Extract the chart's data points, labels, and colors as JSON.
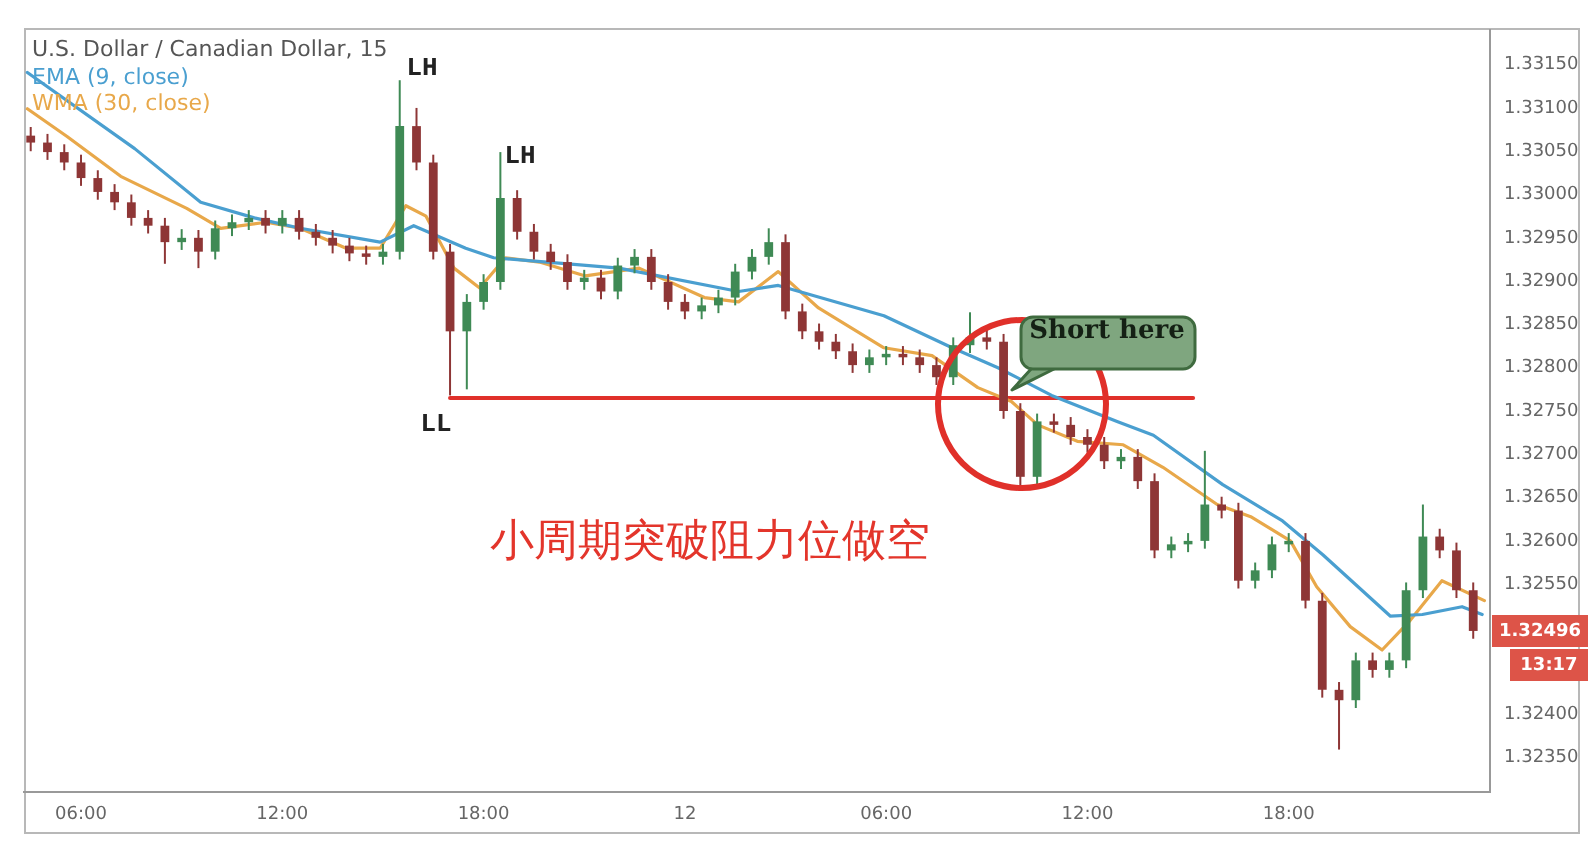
{
  "chart_data": {
    "type": "candlestick",
    "title": "U.S. Dollar / Canadian Dollar, 15",
    "x": [
      "--11-11T04:30",
      "--11-11T05:00",
      "--11-11T05:30",
      "--11-11T06:00",
      "--11-11T06:30",
      "--11-11T07:00",
      "--11-11T07:30",
      "--11-11T08:00",
      "--11-11T08:30",
      "--11-11T09:00",
      "--11-11T09:30",
      "--11-11T10:00",
      "--11-11T10:30",
      "--11-11T11:00",
      "--11-11T11:30",
      "--11-11T12:00",
      "--11-11T12:30",
      "--11-11T13:00",
      "--11-11T13:30",
      "--11-11T14:00",
      "--11-11T14:30",
      "--11-11T15:00",
      "--11-11T15:30",
      "--11-11T16:00",
      "--11-11T16:30",
      "--11-11T17:00",
      "--11-11T17:30",
      "--11-11T18:00",
      "--11-11T18:30",
      "--11-11T19:00",
      "--11-11T19:30",
      "--11-11T20:00",
      "--11-11T20:30",
      "--11-11T21:00",
      "--11-11T21:30",
      "--11-11T22:00",
      "--11-11T22:30",
      "--11-11T23:00",
      "--11-11T23:30",
      "--11-12T00:00",
      "--11-12T00:30",
      "--11-12T01:00",
      "--11-12T01:30",
      "--11-12T02:00",
      "--11-12T02:30",
      "--11-12T03:00",
      "--11-12T03:30",
      "--11-12T04:00",
      "--11-12T04:30",
      "--11-12T05:00",
      "--11-12T05:30",
      "--11-12T06:00",
      "--11-12T06:30",
      "--11-12T07:00",
      "--11-12T07:30",
      "--11-12T08:00",
      "--11-12T08:30",
      "--11-12T09:00",
      "--11-12T09:30",
      "--11-12T10:00",
      "--11-12T10:30",
      "--11-12T11:00",
      "--11-12T11:30",
      "--11-12T12:00",
      "--11-12T12:30",
      "--11-12T13:00",
      "--11-12T13:30",
      "--11-12T14:00",
      "--11-12T14:30",
      "--11-12T15:00",
      "--11-12T15:30",
      "--11-12T16:00",
      "--11-12T16:30",
      "--11-12T17:00",
      "--11-12T17:30",
      "--11-12T18:00",
      "--11-12T18:30",
      "--11-12T19:00",
      "--11-12T19:30",
      "--11-12T20:00",
      "--11-12T20:30",
      "--11-12T21:00",
      "--11-12T21:30",
      "--11-12T22:00",
      "--11-12T22:30",
      "--11-12T23:00",
      "--11-12T23:30"
    ],
    "ohlc": [
      [
        1.33068,
        1.33078,
        1.3305,
        1.3306
      ],
      [
        1.3306,
        1.3307,
        1.3304,
        1.33049
      ],
      [
        1.33049,
        1.33058,
        1.33028,
        1.33037
      ],
      [
        1.33037,
        1.33046,
        1.3301,
        1.33019
      ],
      [
        1.33019,
        1.33028,
        1.32994,
        1.33003
      ],
      [
        1.33003,
        1.33012,
        1.32982,
        1.32991
      ],
      [
        1.32991,
        1.33,
        1.32964,
        1.32973
      ],
      [
        1.32973,
        1.32982,
        1.32955,
        1.32964
      ],
      [
        1.32964,
        1.32973,
        1.3292,
        1.32945
      ],
      [
        1.32945,
        1.3296,
        1.32936,
        1.3295
      ],
      [
        1.3295,
        1.32959,
        1.32915,
        1.32934
      ],
      [
        1.32934,
        1.3297,
        1.32925,
        1.32961
      ],
      [
        1.32961,
        1.32977,
        1.32952,
        1.32968
      ],
      [
        1.32968,
        1.32982,
        1.32959,
        1.32973
      ],
      [
        1.32973,
        1.32982,
        1.32955,
        1.32964
      ],
      [
        1.32964,
        1.32982,
        1.32955,
        1.32973
      ],
      [
        1.32973,
        1.32982,
        1.32948,
        1.32957
      ],
      [
        1.32957,
        1.32966,
        1.32941,
        1.3295
      ],
      [
        1.3295,
        1.32959,
        1.32932,
        1.32941
      ],
      [
        1.32941,
        1.3295,
        1.32923,
        1.32932
      ],
      [
        1.32932,
        1.32941,
        1.32919,
        1.32928
      ],
      [
        1.32928,
        1.32943,
        1.32919,
        1.32934
      ],
      [
        1.32934,
        1.33132,
        1.32925,
        1.33079
      ],
      [
        1.33079,
        1.331,
        1.33028,
        1.33037
      ],
      [
        1.33037,
        1.33046,
        1.32925,
        1.32934
      ],
      [
        1.32934,
        1.32943,
        1.32768,
        1.32842
      ],
      [
        1.32842,
        1.32885,
        1.32775,
        1.32876
      ],
      [
        1.32876,
        1.32908,
        1.32867,
        1.32899
      ],
      [
        1.32899,
        1.33049,
        1.3289,
        1.32996
      ],
      [
        1.32996,
        1.33005,
        1.32948,
        1.32957
      ],
      [
        1.32957,
        1.32966,
        1.32925,
        1.32934
      ],
      [
        1.32934,
        1.32943,
        1.32913,
        1.32922
      ],
      [
        1.32922,
        1.32931,
        1.3289,
        1.32899
      ],
      [
        1.32899,
        1.32913,
        1.3289,
        1.32904
      ],
      [
        1.32904,
        1.32913,
        1.32879,
        1.32888
      ],
      [
        1.32888,
        1.32927,
        1.32879,
        1.32918
      ],
      [
        1.32918,
        1.32937,
        1.32909,
        1.32928
      ],
      [
        1.32928,
        1.32937,
        1.3289,
        1.32899
      ],
      [
        1.32899,
        1.32908,
        1.32867,
        1.32876
      ],
      [
        1.32876,
        1.32885,
        1.32856,
        1.32865
      ],
      [
        1.32865,
        1.32881,
        1.32856,
        1.32872
      ],
      [
        1.32872,
        1.3289,
        1.32863,
        1.32881
      ],
      [
        1.32881,
        1.3292,
        1.32872,
        1.32911
      ],
      [
        1.32911,
        1.32937,
        1.32902,
        1.32928
      ],
      [
        1.32928,
        1.32961,
        1.32919,
        1.32945
      ],
      [
        1.32945,
        1.32954,
        1.32856,
        1.32865
      ],
      [
        1.32865,
        1.32874,
        1.32833,
        1.32842
      ],
      [
        1.32842,
        1.32851,
        1.32821,
        1.3283
      ],
      [
        1.3283,
        1.32839,
        1.3281,
        1.32819
      ],
      [
        1.32819,
        1.32828,
        1.32794,
        1.32803
      ],
      [
        1.32803,
        1.32821,
        1.32794,
        1.32812
      ],
      [
        1.32812,
        1.32825,
        1.32803,
        1.32816
      ],
      [
        1.32816,
        1.32825,
        1.32803,
        1.32812
      ],
      [
        1.32812,
        1.32821,
        1.32794,
        1.32803
      ],
      [
        1.32803,
        1.32812,
        1.3278,
        1.32789
      ],
      [
        1.32789,
        1.32835,
        1.3278,
        1.32826
      ],
      [
        1.32826,
        1.32864,
        1.32817,
        1.32835
      ],
      [
        1.32835,
        1.32844,
        1.32821,
        1.3283
      ],
      [
        1.3283,
        1.32839,
        1.32741,
        1.3275
      ],
      [
        1.3275,
        1.32759,
        1.32658,
        1.32674
      ],
      [
        1.32674,
        1.32747,
        1.32665,
        1.32738
      ],
      [
        1.32738,
        1.32747,
        1.32725,
        1.32734
      ],
      [
        1.32734,
        1.32743,
        1.32711,
        1.3272
      ],
      [
        1.3272,
        1.32729,
        1.32702,
        1.32711
      ],
      [
        1.32711,
        1.3272,
        1.32683,
        1.32692
      ],
      [
        1.32692,
        1.32706,
        1.32683,
        1.32697
      ],
      [
        1.32697,
        1.32706,
        1.3266,
        1.32669
      ],
      [
        1.32669,
        1.32678,
        1.3258,
        1.32589
      ],
      [
        1.32589,
        1.32605,
        1.3258,
        1.32596
      ],
      [
        1.32596,
        1.32609,
        1.32587,
        1.326
      ],
      [
        1.326,
        1.32704,
        1.32591,
        1.32642
      ],
      [
        1.32642,
        1.32651,
        1.32626,
        1.32635
      ],
      [
        1.32635,
        1.32644,
        1.32545,
        1.32554
      ],
      [
        1.32554,
        1.32575,
        1.32545,
        1.32566
      ],
      [
        1.32566,
        1.32605,
        1.32557,
        1.32596
      ],
      [
        1.32596,
        1.32609,
        1.32587,
        1.326
      ],
      [
        1.326,
        1.32609,
        1.32522,
        1.32531
      ],
      [
        1.32531,
        1.3254,
        1.32419,
        1.32428
      ],
      [
        1.32428,
        1.32437,
        1.32359,
        1.32416
      ],
      [
        1.32416,
        1.32471,
        1.32407,
        1.32462
      ],
      [
        1.32462,
        1.32471,
        1.32442,
        1.32451
      ],
      [
        1.32451,
        1.32471,
        1.32442,
        1.32462
      ],
      [
        1.32462,
        1.32552,
        1.32453,
        1.32543
      ],
      [
        1.32543,
        1.32642,
        1.32534,
        1.32605
      ],
      [
        1.32605,
        1.32614,
        1.3258,
        1.32589
      ],
      [
        1.32589,
        1.32598,
        1.32534,
        1.32543
      ],
      [
        1.32543,
        1.32552,
        1.32487,
        1.32496
      ]
    ],
    "series": [
      {
        "type": "line",
        "name": "EMA (9, close)",
        "color": "#4a9fd0",
        "x": [
          "--11-11T04:24",
          "--11-11T07:36",
          "--11-11T09:34",
          "--11-11T11:10",
          "--11-11T12:32",
          "--11-11T14:55",
          "--11-11T15:55",
          "--11-11T17:28",
          "--11-11T18:18",
          "--11-11T22:02",
          "--11-12T01:36",
          "--11-12T02:47",
          "--11-12T05:56",
          "--11-12T07:58",
          "--11-12T09:20",
          "--11-12T10:56",
          "--11-12T12:53",
          "--11-12T13:58",
          "--11-12T16:02",
          "--11-12T17:49",
          "--11-12T19:01",
          "--11-12T21:02",
          "--11-12T21:59",
          "--11-12T23:10",
          "--11-12T23:46"
        ],
        "values": [
          1.33141,
          1.33053,
          1.32991,
          1.32973,
          1.32961,
          1.32945,
          1.32964,
          1.32938,
          1.32927,
          1.32915,
          1.32888,
          1.32895,
          1.3286,
          1.32823,
          1.328,
          1.32768,
          1.32738,
          1.32722,
          1.32665,
          1.32623,
          1.32584,
          1.32513,
          1.32515,
          1.32524,
          1.32515
        ]
      },
      {
        "type": "line",
        "name": "WMA (30, close)",
        "color": "#e8a84a",
        "x": [
          "--11-11T04:24",
          "--11-11T05:35",
          "--11-11T07:11",
          "--11-11T09:09",
          "--11-11T10:10",
          "--11-11T11:31",
          "--11-11T12:32",
          "--11-11T13:54",
          "--11-11T14:55",
          "--11-11T15:41",
          "--11-11T16:17",
          "--11-11T17:07",
          "--11-11T17:53",
          "--11-11T18:39",
          "--11-11T19:40",
          "--11-11T21:02",
          "--11-11T22:38",
          "--11-12T00:35",
          "--11-12T01:36",
          "--11-12T02:47",
          "--11-12T03:59",
          "--11-12T05:56",
          "--11-12T07:22",
          "--11-12T08:44",
          "--11-12T09:44",
          "--11-12T10:31",
          "--11-12T11:42",
          "--11-12T13:04",
          "--11-12T14:15",
          "--11-12T15:52",
          "--11-12T16:52",
          "--11-12T18:03",
          "--11-12T18:50",
          "--11-12T19:50",
          "--11-12T20:47",
          "--11-12T21:37",
          "--11-12T22:34",
          "--11-12T23:50"
        ],
        "values": [
          1.33099,
          1.33067,
          1.33021,
          1.32984,
          1.32961,
          1.32968,
          1.32961,
          1.32938,
          1.32938,
          1.32987,
          1.32975,
          1.32915,
          1.32892,
          1.32927,
          1.32922,
          1.32906,
          1.32915,
          1.32881,
          1.32876,
          1.32911,
          1.32869,
          1.32823,
          1.32814,
          1.32777,
          1.32761,
          1.32734,
          1.32715,
          1.32711,
          1.32685,
          1.32642,
          1.32628,
          1.326,
          1.32547,
          1.32501,
          1.32474,
          1.32508,
          1.32554,
          1.32531
        ]
      },
      {
        "type": "line",
        "color": "#e0302a",
        "x": [
          "--11-11T17:00",
          "--11-12T15:09"
        ],
        "values": [
          1.32765,
          1.32765
        ]
      }
    ],
    "xlim": [
      "--11-11T04:18",
      "--11-13T00:00"
    ],
    "ylim": [
      1.3231,
      1.3319
    ],
    "xticks": [
      {
        "value": "--11-11T06:00",
        "label": "06:00"
      },
      {
        "value": "--11-11T12:00",
        "label": "12:00"
      },
      {
        "value": "--11-11T18:00",
        "label": "18:00"
      },
      {
        "value": "--11-12T00:00",
        "label": "12"
      },
      {
        "value": "--11-12T06:00",
        "label": "06:00"
      },
      {
        "value": "--11-12T12:00",
        "label": "12:00"
      },
      {
        "value": "--11-12T18:00",
        "label": "18:00"
      }
    ],
    "yticks": [
      {
        "value": 1.3235,
        "label": "1.32350"
      },
      {
        "value": 1.324,
        "label": "1.32400"
      },
      {
        "value": 1.3255,
        "label": "1.32550"
      },
      {
        "value": 1.326,
        "label": "1.32600"
      },
      {
        "value": 1.3265,
        "label": "1.32650"
      },
      {
        "value": 1.327,
        "label": "1.32700"
      },
      {
        "value": 1.3275,
        "label": "1.32750"
      },
      {
        "value": 1.328,
        "label": "1.32800"
      },
      {
        "value": 1.3285,
        "label": "1.32850"
      },
      {
        "value": 1.329,
        "label": "1.32900"
      },
      {
        "value": 1.3295,
        "label": "1.32950"
      },
      {
        "value": 1.33,
        "label": "1.33000"
      },
      {
        "value": 1.3305,
        "label": "1.33050"
      },
      {
        "value": 1.331,
        "label": "1.33100"
      },
      {
        "value": 1.3315,
        "label": "1.33150"
      }
    ],
    "annotations": [
      "LH",
      "LH",
      "LL",
      "Short here",
      "1.32496",
      "13:17",
      "小周期突破阻力位做空"
    ],
    "legend": "top left",
    "marker": "none",
    "line_style": "solid"
  }
}
